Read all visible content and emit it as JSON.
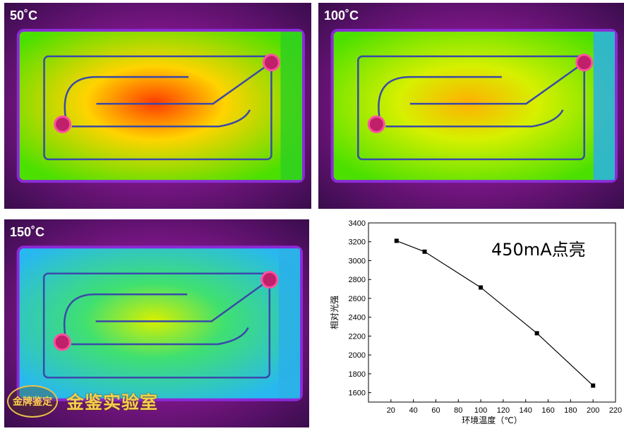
{
  "panels": [
    {
      "label": "50˚C",
      "intensity": 1.0
    },
    {
      "label": "100˚C",
      "intensity": 0.65
    },
    {
      "label": "150˚C",
      "intensity": 0.35
    }
  ],
  "watermark": {
    "seal": "金牌鉴定",
    "text": "金鉴实验室"
  },
  "chart_data": {
    "type": "line",
    "annotation": "450mA点亮",
    "xlabel": "环境温度（℃）",
    "ylabel": "相对光强",
    "xlim": [
      0,
      220
    ],
    "ylim": [
      1500,
      3400
    ],
    "xticks": [
      "20",
      "40",
      "60",
      "80",
      "100",
      "120",
      "140",
      "160",
      "180",
      "200",
      "220"
    ],
    "yticks": [
      "1600",
      "1800",
      "2000",
      "2200",
      "2400",
      "2600",
      "2800",
      "3000",
      "3200",
      "3400"
    ],
    "x": [
      25,
      50,
      100,
      150,
      200
    ],
    "y": [
      3210,
      3095,
      2715,
      2230,
      1675
    ],
    "line_color": "#000000"
  }
}
